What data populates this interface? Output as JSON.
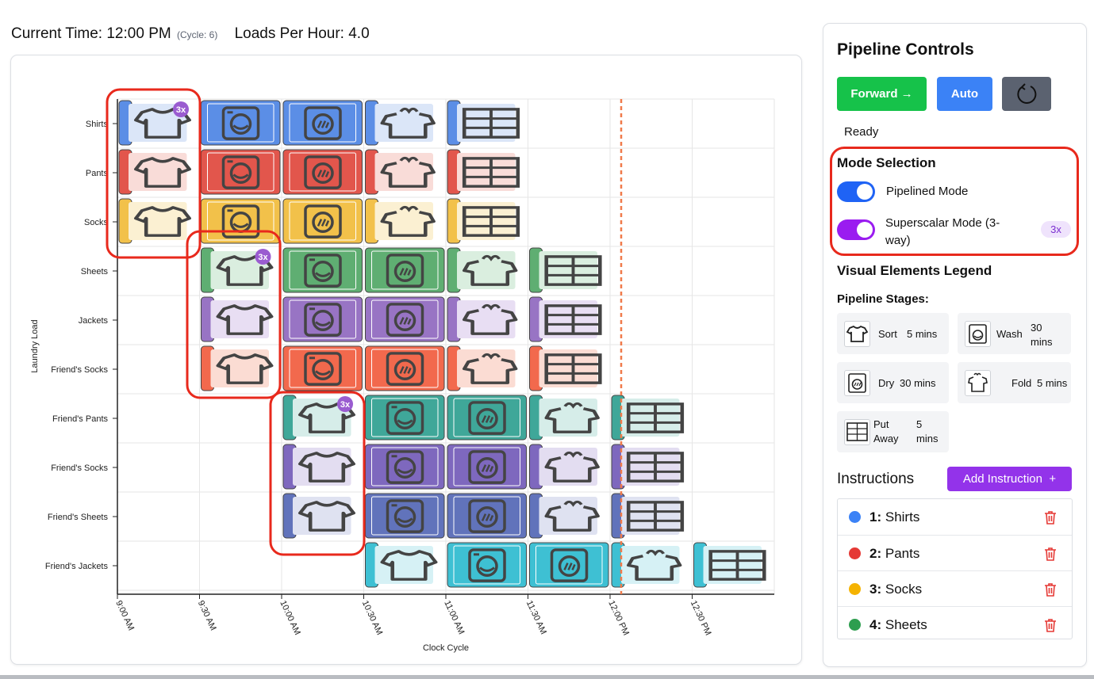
{
  "header": {
    "time_label": "Current Time: 12:00 PM",
    "cycle_label": "(Cycle: 6)",
    "lph_label": "Loads Per Hour: 4.0"
  },
  "chart_data": {
    "type": "gantt",
    "xlabel": "Clock Cycle",
    "ylabel": "Laundry Load",
    "x_ticks": [
      "9:00 AM",
      "9:30 AM",
      "10:00 AM",
      "10:30 AM",
      "11:00 AM",
      "11:30 AM",
      "12:00 PM",
      "12:30 PM"
    ],
    "current_time": "12:00 PM",
    "current_cycle": 6,
    "stages": [
      "Sort",
      "Wash",
      "Dry",
      "Fold",
      "Put Away"
    ],
    "loads": [
      {
        "name": "Shirts",
        "start_cycle": 0,
        "color": "#5b8ee6",
        "light": "#dbe6f8",
        "badge": "3x"
      },
      {
        "name": "Pants",
        "start_cycle": 0,
        "color": "#e2564c",
        "light": "#f9dcd8"
      },
      {
        "name": "Socks",
        "start_cycle": 0,
        "color": "#f2c14a",
        "light": "#fbf0d2"
      },
      {
        "name": "Sheets",
        "start_cycle": 1,
        "color": "#5fae72",
        "light": "#daeedf",
        "badge": "3x"
      },
      {
        "name": "Jackets",
        "start_cycle": 1,
        "color": "#9874c4",
        "light": "#e8def3"
      },
      {
        "name": "Friend's Socks",
        "start_cycle": 1,
        "color": "#f2694d",
        "light": "#fbdcd3"
      },
      {
        "name": "Friend's Pants",
        "start_cycle": 2,
        "color": "#3fa799",
        "light": "#d6ede9",
        "badge": "3x"
      },
      {
        "name": "Friend's Socks",
        "start_cycle": 2,
        "color": "#7e68be",
        "light": "#e3ddf1"
      },
      {
        "name": "Friend's Sheets",
        "start_cycle": 2,
        "color": "#6173bb",
        "light": "#dfe2f1"
      },
      {
        "name": "Friend's Jackets",
        "start_cycle": 3,
        "color": "#3ec0d3",
        "light": "#d6f1f5"
      }
    ]
  },
  "sidebar": {
    "title": "Pipeline Controls",
    "forward_label": "Forward →",
    "auto_label": "Auto",
    "reset_icon": "reset-icon",
    "status": "Ready",
    "mode_title": "Mode Selection",
    "pipelined_label": "Pipelined Mode",
    "superscalar_label_1": "Superscalar Mode (3-",
    "superscalar_label_2": "way)",
    "superscalar_badge": "3x",
    "legend_title": "Visual Elements Legend",
    "stages_title": "Pipeline Stages:",
    "stage_items": [
      {
        "name": "Sort",
        "duration": "5 mins",
        "icon": "shirt-icon"
      },
      {
        "name": "Wash",
        "duration": "30 mins",
        "icon": "washer-icon"
      },
      {
        "name": "Dry",
        "duration": "30 mins",
        "icon": "dryer-icon"
      },
      {
        "name": "Fold",
        "duration": "5 mins",
        "icon": "folded-shirt-icon"
      },
      {
        "name": "Put Away",
        "duration": "5 mins",
        "icon": "dresser-icon"
      }
    ],
    "instructions_title": "Instructions",
    "add_label": "Add Instruction",
    "instructions": [
      {
        "num": "1:",
        "name": "Shirts",
        "color": "#3b82f6"
      },
      {
        "num": "2:",
        "name": "Pants",
        "color": "#e53935"
      },
      {
        "num": "3:",
        "name": "Socks",
        "color": "#f5b301"
      },
      {
        "num": "4:",
        "name": "Sheets",
        "color": "#2e9e4f"
      }
    ]
  },
  "colors": {
    "forward": "#16c24a",
    "auto": "#3b82f6",
    "reset": "#5b6270",
    "toggle_pipelined": "#1f63f5",
    "toggle_superscalar": "#9a1cf0",
    "highlight": "#e8291c",
    "current_line": "#f07a4a"
  }
}
